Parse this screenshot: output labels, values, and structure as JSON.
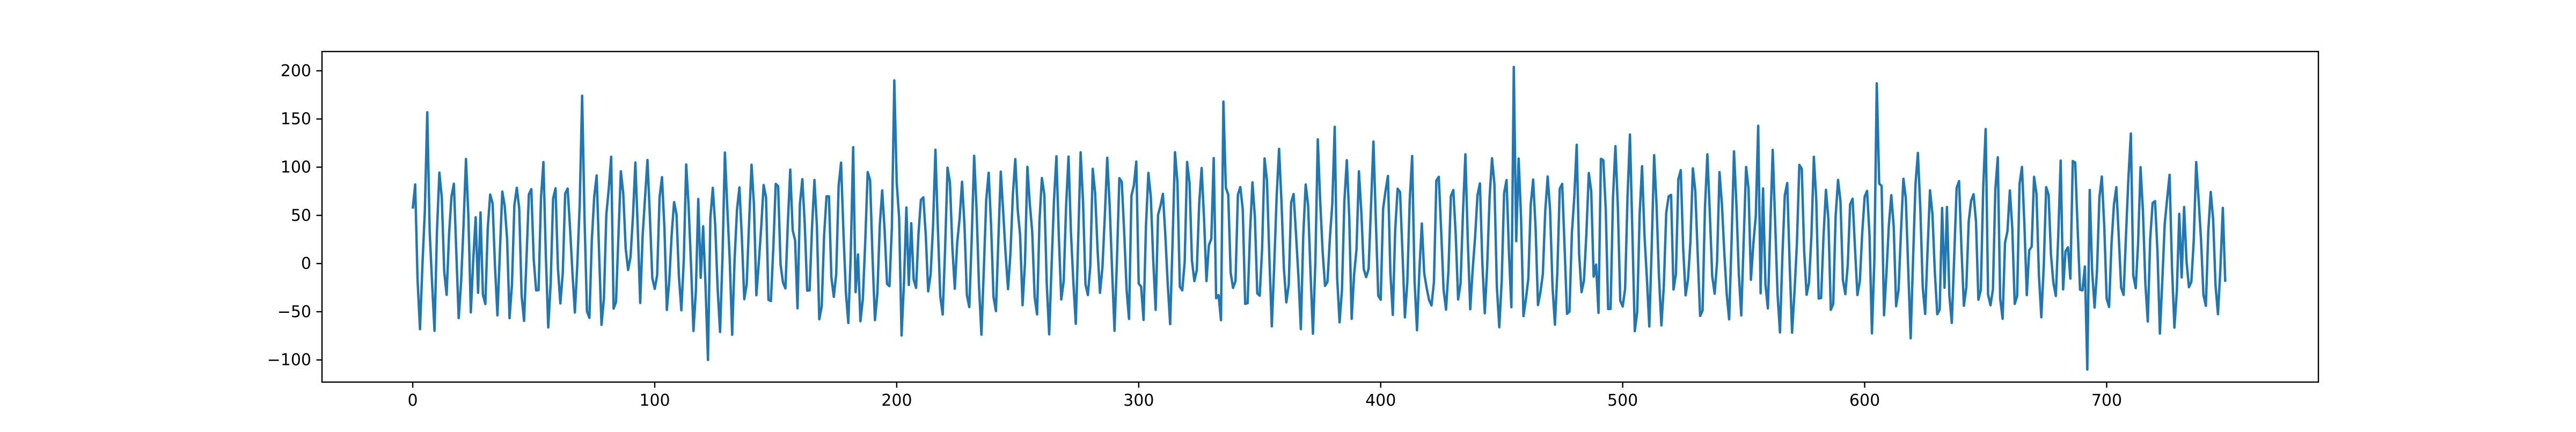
{
  "chart_data": {
    "type": "line",
    "title": "",
    "xlabel": "",
    "ylabel": "",
    "xlim": [
      -37.5,
      787.5
    ],
    "ylim": [
      -123,
      220
    ],
    "x_ticks": [
      0,
      100,
      200,
      300,
      400,
      500,
      600,
      700
    ],
    "y_ticks": [
      -100,
      -50,
      0,
      50,
      100,
      150,
      200
    ],
    "grid": false,
    "legend": "none",
    "colors": {
      "line": "#1f77b4",
      "axes": "#000000",
      "background": "#ffffff"
    },
    "series": [
      {
        "x_start": 0,
        "x_step": 1,
        "count": 750,
        "approx_range": [
          -110,
          205
        ],
        "notable_points": [
          {
            "x": 0,
            "y": 57
          },
          {
            "x": 6,
            "y": 157
          },
          {
            "x": 122,
            "y": -100
          },
          {
            "x": 199,
            "y": 190
          },
          {
            "x": 335,
            "y": 168
          },
          {
            "x": 455,
            "y": 204
          },
          {
            "x": 605,
            "y": 187
          },
          {
            "x": 692,
            "y": -110
          },
          {
            "x": 749,
            "y": -19
          }
        ],
        "values": []
      }
    ]
  }
}
